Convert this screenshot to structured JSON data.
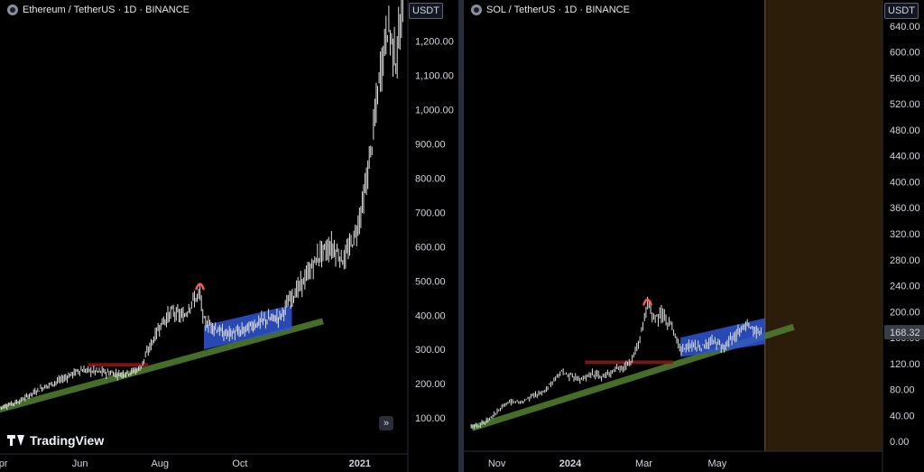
{
  "left_panel": {
    "header": "Ethereum / TetherUS · 1D · BINANCE",
    "unit": "USDT",
    "logo_text": "TradingView",
    "scroll_icon": "double-chevron-right-icon"
  },
  "right_panel": {
    "header": "SOL / TetherUS · 1D · BINANCE",
    "unit": "USDT",
    "last_price_label": "168.32"
  },
  "colors": {
    "background": "#000000",
    "candle": "#e0e0e0",
    "trendline": "#4e7a2e",
    "consolidation_box": "#2f55d4",
    "resistance_line": "#8b1a1a",
    "top_marker": "#ff5a5a",
    "shaded_region": "#2b1d0a",
    "last_price_badge": "#3a3d46"
  },
  "chart_data": [
    {
      "type": "candlestick",
      "title": "Ethereum / TetherUS · 1D · BINANCE",
      "y_tick_labels": [
        "100.00",
        "200.00",
        "300.00",
        "400.00",
        "500.00",
        "600.00",
        "700.00",
        "800.00",
        "900.00",
        "1,000.00",
        "1,100.00",
        "1,200.00"
      ],
      "y_ticks": [
        100,
        200,
        300,
        400,
        500,
        600,
        700,
        800,
        900,
        1000,
        1100,
        1200
      ],
      "ylim": [
        -5,
        1320
      ],
      "x_tick_labels": [
        "Apr",
        "Jun",
        "Aug",
        "Oct",
        "2021"
      ],
      "x_ticks_month_index": [
        0,
        2,
        4,
        6,
        9
      ],
      "xlim_month_index": [
        0,
        10.2
      ],
      "close_path": [
        [
          0.0,
          130
        ],
        [
          0.5,
          150
        ],
        [
          1.0,
          185
        ],
        [
          1.5,
          210
        ],
        [
          2.0,
          240
        ],
        [
          2.5,
          235
        ],
        [
          3.0,
          228
        ],
        [
          3.3,
          235
        ],
        [
          3.5,
          245
        ],
        [
          3.8,
          320
        ],
        [
          4.0,
          370
        ],
        [
          4.3,
          410
        ],
        [
          4.6,
          395
        ],
        [
          4.8,
          440
        ],
        [
          5.0,
          460
        ],
        [
          5.1,
          380
        ],
        [
          5.3,
          370
        ],
        [
          5.6,
          345
        ],
        [
          6.0,
          350
        ],
        [
          6.3,
          370
        ],
        [
          6.6,
          385
        ],
        [
          7.0,
          395
        ],
        [
          7.3,
          455
        ],
        [
          7.6,
          500
        ],
        [
          8.0,
          580
        ],
        [
          8.3,
          600
        ],
        [
          8.6,
          560
        ],
        [
          8.9,
          640
        ],
        [
          9.1,
          740
        ],
        [
          9.3,
          900
        ],
        [
          9.5,
          1100
        ],
        [
          9.7,
          1250
        ],
        [
          9.9,
          1150
        ],
        [
          10.1,
          1300
        ]
      ],
      "annotations": {
        "trendline": [
          [
            0.0,
            125
          ],
          [
            8.0,
            380
          ]
        ],
        "consolidation_box": {
          "x": [
            5.1,
            7.3
          ],
          "lower_from": 300,
          "lower_to": 360,
          "upper_from": 370,
          "upper_to": 430
        },
        "resistance_line": {
          "x": [
            2.2,
            3.7
          ],
          "y": 255
        },
        "top_marker": {
          "x": 5.0,
          "y": 490
        }
      }
    },
    {
      "type": "candlestick",
      "title": "SOL / TetherUS · 1D · BINANCE",
      "y_tick_labels": [
        "0.00",
        "40.00",
        "80.00",
        "120.00",
        "160.00",
        "200.00",
        "240.00",
        "280.00",
        "320.00",
        "360.00",
        "400.00",
        "440.00",
        "480.00",
        "520.00",
        "560.00",
        "600.00",
        "640.00"
      ],
      "y_ticks": [
        0,
        40,
        80,
        120,
        160,
        200,
        240,
        280,
        320,
        360,
        400,
        440,
        480,
        520,
        560,
        600,
        640
      ],
      "ylim": [
        -15,
        680
      ],
      "last_price": 168.32,
      "x_tick_labels": [
        "Nov",
        "2024",
        "Mar",
        "May"
      ],
      "x_ticks_month_index": [
        0,
        2,
        4,
        6
      ],
      "xlim_month_index": [
        -0.9,
        10.5
      ],
      "future_region_start_month_index": 7.3,
      "close_path": [
        [
          -0.7,
          22
        ],
        [
          -0.3,
          30
        ],
        [
          0.0,
          45
        ],
        [
          0.3,
          60
        ],
        [
          0.7,
          62
        ],
        [
          1.0,
          70
        ],
        [
          1.3,
          78
        ],
        [
          1.6,
          95
        ],
        [
          1.8,
          108
        ],
        [
          2.0,
          100
        ],
        [
          2.3,
          95
        ],
        [
          2.6,
          105
        ],
        [
          2.9,
          100
        ],
        [
          3.2,
          110
        ],
        [
          3.5,
          115
        ],
        [
          3.7,
          125
        ],
        [
          3.9,
          160
        ],
        [
          4.1,
          210
        ],
        [
          4.3,
          190
        ],
        [
          4.5,
          195
        ],
        [
          4.8,
          175
        ],
        [
          5.0,
          140
        ],
        [
          5.3,
          150
        ],
        [
          5.6,
          145
        ],
        [
          5.9,
          155
        ],
        [
          6.2,
          145
        ],
        [
          6.5,
          165
        ],
        [
          6.8,
          178
        ],
        [
          7.0,
          170
        ],
        [
          7.2,
          168.32
        ]
      ],
      "annotations": {
        "trendline": [
          [
            -0.6,
            22
          ],
          [
            8.0,
            175
          ]
        ],
        "consolidation_box": {
          "x": [
            5.0,
            7.3
          ],
          "lower_from": 130,
          "lower_to": 150,
          "upper_from": 160,
          "upper_to": 190
        },
        "resistance_line": {
          "x": [
            2.4,
            4.8
          ],
          "y": 122
        },
        "top_marker": {
          "x": 4.1,
          "y": 218
        }
      }
    }
  ]
}
